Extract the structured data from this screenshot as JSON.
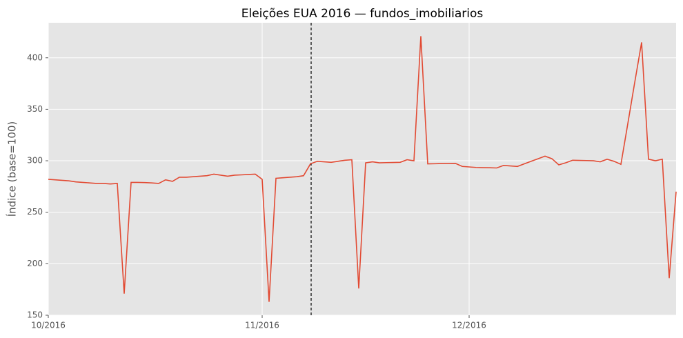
{
  "chart_data": {
    "type": "line",
    "title": "Eleições EUA 2016 — fundos_imobiliarios",
    "y_label": "Índice (base=100)",
    "categories": [
      "10/2016",
      null,
      null,
      null,
      null,
      null,
      null,
      null,
      null,
      null,
      null,
      null,
      null,
      null,
      null,
      null,
      null,
      null,
      null,
      null,
      null,
      null,
      null,
      null,
      null,
      null,
      null,
      null,
      null,
      null,
      null,
      "11/2016",
      null,
      null,
      null,
      null,
      null,
      null,
      null,
      null,
      null,
      null,
      null,
      null,
      null,
      null,
      null,
      null,
      null,
      null,
      null,
      null,
      null,
      null,
      null,
      null,
      null,
      null,
      null,
      null,
      null,
      "12/2016",
      null,
      null,
      null,
      null,
      null,
      null,
      null,
      null,
      null,
      null,
      null,
      null,
      null,
      null,
      null,
      null,
      null,
      null,
      null,
      null,
      null,
      null,
      null,
      null,
      null,
      null,
      null,
      null,
      null,
      null
    ],
    "series": [
      {
        "name": "fundos_imobiliarios",
        "color": "#e24a33",
        "values": [
          282,
          281.5,
          281,
          280.5,
          279.5,
          279,
          278.5,
          278,
          278,
          277.5,
          278,
          171,
          279,
          279,
          278.8,
          278.5,
          278,
          281.5,
          280,
          284,
          284,
          284.5,
          285,
          285.5,
          287,
          286,
          285,
          286,
          286.3,
          286.7,
          287,
          282,
          163,
          283,
          283.5,
          284,
          284.5,
          285.5,
          297,
          299.5,
          299,
          298.5,
          299.5,
          300.5,
          301,
          176,
          298,
          299,
          298,
          298.2,
          298.3,
          298.5,
          301,
          300,
          421,
          297,
          297.1,
          297.3,
          297.4,
          297.5,
          294.5,
          294,
          293.5,
          293.3,
          293.2,
          293,
          295.5,
          295,
          294.5,
          297,
          299.5,
          302,
          304.5,
          302,
          296,
          298,
          300.5,
          300.3,
          300.2,
          300,
          299,
          301.5,
          299.5,
          296.5,
          336,
          376,
          415,
          301.5,
          300,
          301.5,
          186,
          270
        ]
      }
    ],
    "ylim": [
      150,
      434
    ],
    "yticks": [
      150,
      200,
      250,
      300,
      350,
      400
    ],
    "grid": true
  }
}
